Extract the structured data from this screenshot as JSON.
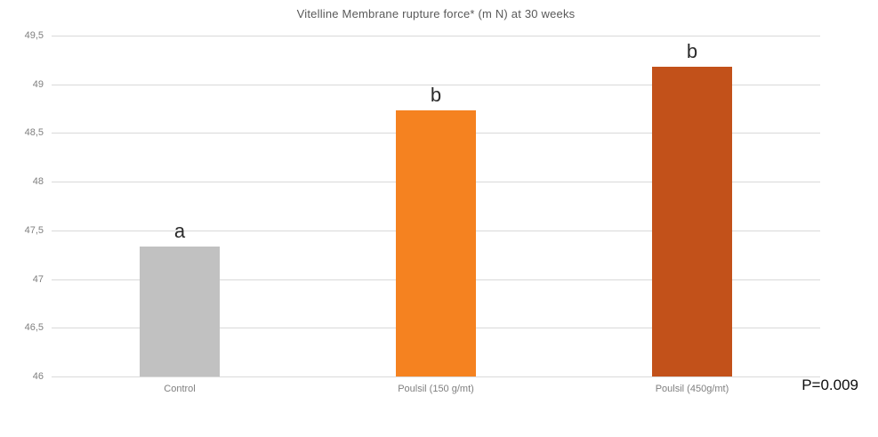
{
  "chart_data": {
    "type": "bar",
    "title": "Vitelline Membrane rupture force* (m N) at 30 weeks",
    "categories": [
      "Control",
      "Poulsil (150 g/mt)",
      "Poulsil (450g/mt)"
    ],
    "values": [
      47.33,
      48.73,
      49.18
    ],
    "significance_letters": [
      "a",
      "b",
      "b"
    ],
    "bar_colors": [
      "#c1c1c1",
      "#f58220",
      "#c2511a"
    ],
    "ylim": [
      46,
      49.5
    ],
    "ytick_step": 0.5,
    "ytick_labels_top_to_bottom": [
      "49,5",
      "49",
      "48,5",
      "48",
      "47,5",
      "47",
      "46,5",
      "46"
    ],
    "grid": true,
    "legend": false,
    "xlabel": "",
    "ylabel": "",
    "annotation": "P=0.009",
    "colors": {
      "grid": "#d9d9d9",
      "axis_text": "#7f7f7f",
      "title_text": "#595959",
      "letter_text": "#2b2b2b",
      "annotation_text": "#0d0d0d",
      "background": "#ffffff"
    }
  }
}
